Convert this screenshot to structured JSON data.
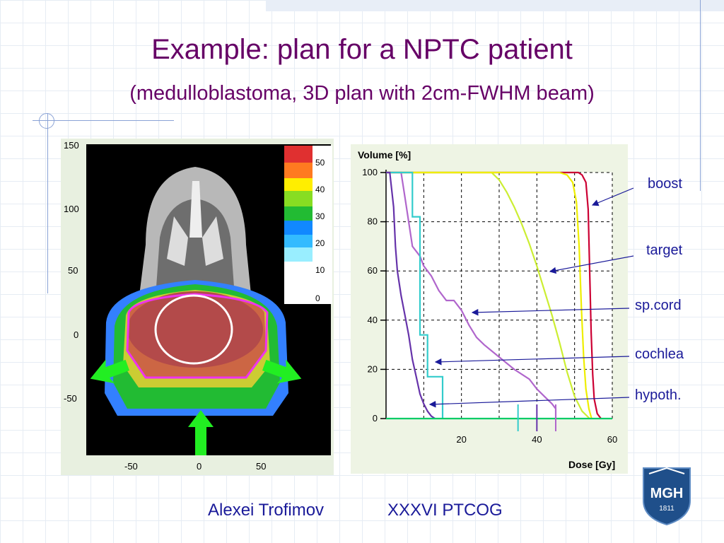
{
  "slide": {
    "title": "Example: plan for a NPTC patient",
    "subtitle": "(medulloblastoma, 3D plan with 2cm-FWHM beam)",
    "footer_author": "Alexei Trofimov",
    "footer_conf": "XXXVI PTCOG"
  },
  "dose_map": {
    "y_ticks": [
      "150",
      "100",
      "50",
      "0",
      "-50"
    ],
    "x_ticks": [
      "-50",
      "0",
      "50"
    ],
    "colorbar_ticks": [
      "50",
      "40",
      "30",
      "20",
      "10",
      "0"
    ]
  },
  "logo": {
    "text": "MGH",
    "year": "1811"
  },
  "chart_data": {
    "type": "line",
    "xlabel": "Dose [Gy]",
    "ylabel": "Volume [%]",
    "xlim": [
      0,
      60
    ],
    "ylim": [
      0,
      100
    ],
    "x_ticks": [
      "20",
      "40",
      "60"
    ],
    "y_ticks": [
      "100",
      "80",
      "60",
      "40",
      "20",
      "0"
    ],
    "grid": true,
    "series": [
      {
        "name": "boost",
        "color": "#cc0033",
        "points": [
          [
            0,
            100
          ],
          [
            51,
            100
          ],
          [
            52,
            99
          ],
          [
            53,
            96
          ],
          [
            53.6,
            85
          ],
          [
            54,
            60
          ],
          [
            54.4,
            35
          ],
          [
            54.8,
            18
          ],
          [
            55.2,
            8
          ],
          [
            56,
            2
          ],
          [
            57,
            0
          ]
        ]
      },
      {
        "name": "target",
        "color": "#ccee33",
        "points": [
          [
            0,
            100
          ],
          [
            28,
            100
          ],
          [
            30,
            97
          ],
          [
            32,
            92
          ],
          [
            34,
            86
          ],
          [
            36,
            79
          ],
          [
            38,
            71
          ],
          [
            40,
            62
          ],
          [
            42,
            52
          ],
          [
            44,
            42
          ],
          [
            46,
            31
          ],
          [
            48,
            19
          ],
          [
            50,
            9
          ],
          [
            52,
            3
          ],
          [
            54,
            0
          ]
        ]
      },
      {
        "name": "",
        "color": "#eeee00",
        "points": [
          [
            0,
            100
          ],
          [
            46,
            100
          ],
          [
            48,
            99
          ],
          [
            49.5,
            96
          ],
          [
            50.5,
            88
          ],
          [
            51.2,
            70
          ],
          [
            51.8,
            45
          ],
          [
            52.4,
            25
          ],
          [
            53,
            12
          ],
          [
            53.8,
            4
          ],
          [
            54.5,
            0
          ]
        ]
      },
      {
        "name": "sp.cord",
        "color": "#b066cc",
        "points": [
          [
            0,
            100
          ],
          [
            4,
            100
          ],
          [
            5,
            90
          ],
          [
            6,
            80
          ],
          [
            7,
            70
          ],
          [
            9,
            66
          ],
          [
            10,
            62
          ],
          [
            12,
            58
          ],
          [
            14,
            52
          ],
          [
            16,
            48
          ],
          [
            18,
            48
          ],
          [
            20,
            44
          ],
          [
            22,
            38
          ],
          [
            24,
            33
          ],
          [
            26,
            30
          ],
          [
            30,
            25
          ],
          [
            34,
            20
          ],
          [
            38,
            16
          ],
          [
            40,
            12
          ],
          [
            42,
            9
          ],
          [
            44,
            6
          ],
          [
            45,
            4
          ],
          [
            45,
            0
          ]
        ]
      },
      {
        "name": "cochlea",
        "color": "#33cccc",
        "points": [
          [
            0,
            100
          ],
          [
            7,
            100
          ],
          [
            7,
            82
          ],
          [
            9,
            82
          ],
          [
            9,
            34
          ],
          [
            11,
            34
          ],
          [
            11,
            17
          ],
          [
            15,
            17
          ],
          [
            15,
            0
          ]
        ]
      },
      {
        "name": "hypoth.",
        "color": "#6633aa",
        "points": [
          [
            0,
            100
          ],
          [
            1,
            100
          ],
          [
            2,
            86
          ],
          [
            2.5,
            70
          ],
          [
            3,
            60
          ],
          [
            4,
            50
          ],
          [
            5,
            42
          ],
          [
            6,
            34
          ],
          [
            7,
            24
          ],
          [
            8,
            17
          ],
          [
            9,
            10
          ],
          [
            10,
            6
          ],
          [
            11,
            3
          ],
          [
            12,
            1
          ],
          [
            13,
            0
          ]
        ]
      },
      {
        "name": "",
        "color": "#00cc66",
        "points": [
          [
            0,
            0
          ],
          [
            60,
            0
          ]
        ]
      }
    ],
    "markers": [
      {
        "x": 35,
        "color": "#33cccc"
      },
      {
        "x": 40,
        "color": "#6633aa"
      },
      {
        "x": 45,
        "color": "#b066cc"
      }
    ]
  },
  "annotations": {
    "boost": "boost",
    "target": "target",
    "spcord": "sp.cord",
    "cochlea": "cochlea",
    "hypoth": "hypoth."
  }
}
